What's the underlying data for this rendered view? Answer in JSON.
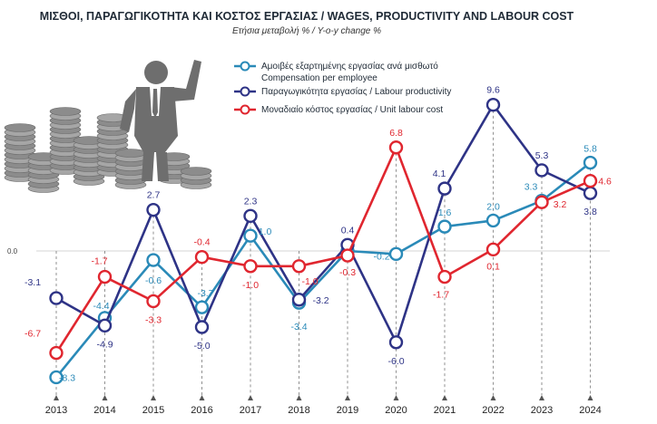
{
  "chart_data": {
    "type": "line",
    "title": "ΜΙΣΘΟΙ, ΠΑΡΑΓΩΓΙΚΟΤΗΤΑ ΚΑΙ ΚΟΣΤΟΣ ΕΡΓΑΣΙΑΣ / WAGES, PRODUCTIVITY AND LABOUR COST",
    "subtitle": "Ετήσια μεταβολή % / Y-o-y change %",
    "zero_label": "0.0",
    "ylim": [
      -9.5,
      10.5
    ],
    "grid": false,
    "legend_position": "top-right",
    "x": [
      "2013",
      "2014",
      "2015",
      "2016",
      "2017",
      "2018",
      "2019",
      "2020",
      "2021",
      "2022",
      "2023",
      "2024"
    ],
    "series": [
      {
        "key": "compensation",
        "name_lines": [
          "Αμοιβές εξαρτημένης εργασίας ανά μισθωτό",
          "Compensation per employee"
        ],
        "color": "#2a8ab8",
        "values": [
          -8.3,
          -4.4,
          -0.6,
          -3.7,
          1.0,
          -3.4,
          0.0,
          -0.2,
          1.6,
          2.0,
          3.3,
          5.8
        ],
        "labels": [
          "-8.3",
          "-4.4",
          "-0.6",
          "-3.7",
          "1.0",
          "-3.4",
          "",
          "-0.2",
          "1.6",
          "2.0",
          "3.3",
          "5.8"
        ]
      },
      {
        "key": "productivity",
        "name_lines": [
          "Παραγωγικότητα εργασίας / Labour productivity"
        ],
        "color": "#2e3386",
        "values": [
          -3.1,
          -4.9,
          2.7,
          -5.0,
          2.3,
          -3.2,
          0.4,
          -6.0,
          4.1,
          9.6,
          5.3,
          3.8
        ],
        "labels": [
          "-3.1",
          "-4.9",
          "2.7",
          "-5.0",
          "2.3",
          "-3.2",
          "0.4",
          "-6.0",
          "4.1",
          "9.6",
          "5.3",
          "3.8"
        ]
      },
      {
        "key": "ulc",
        "name_lines": [
          "Μοναδιαίο κόστος εργασίας / Unit labour cost"
        ],
        "color": "#e0262f",
        "values": [
          -6.7,
          -1.7,
          -3.3,
          -0.4,
          -1.0,
          -1.0,
          -0.3,
          6.8,
          -1.7,
          0.1,
          3.2,
          4.6
        ],
        "labels": [
          "-6.7",
          "-1.7",
          "-3.3",
          "-0.4",
          "-1.0",
          "-1.0",
          "-0.3",
          "6.8",
          "-1.7",
          "0.1",
          "3.2",
          "4.6"
        ]
      }
    ]
  }
}
